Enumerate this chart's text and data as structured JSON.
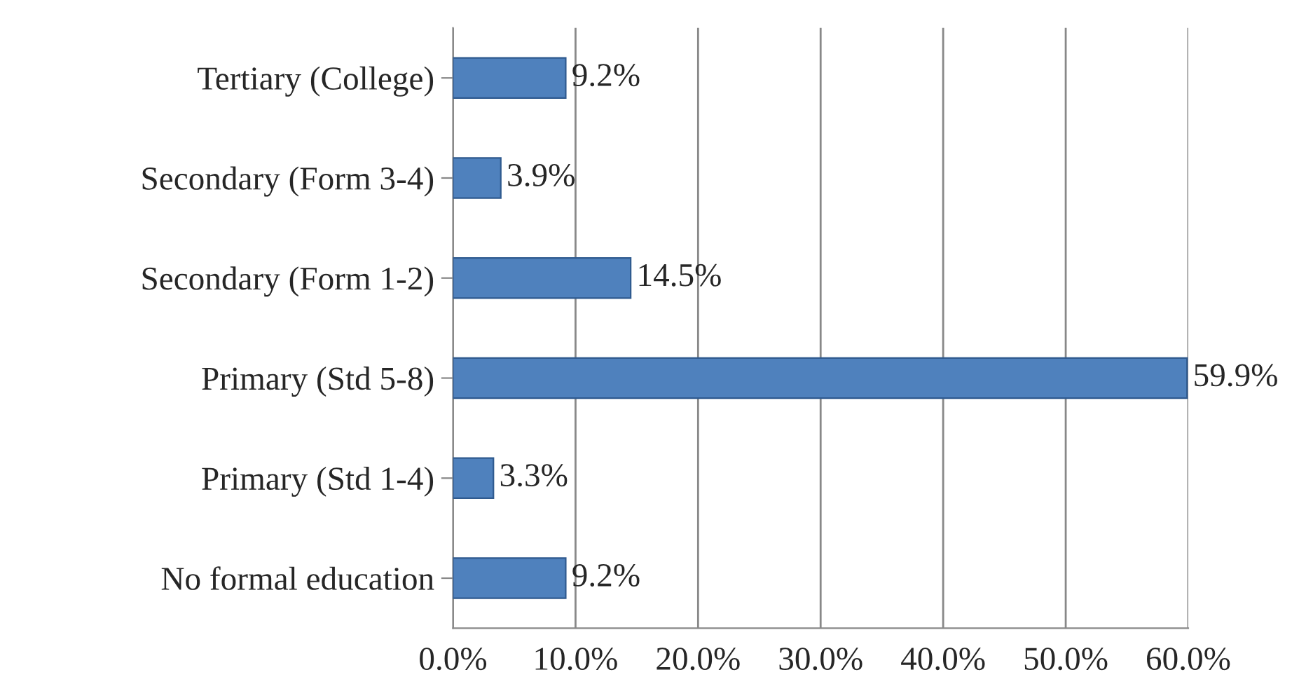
{
  "chart_data": {
    "type": "bar",
    "orientation": "horizontal",
    "categories": [
      "Tertiary (College)",
      "Secondary (Form 3-4)",
      "Secondary (Form 1-2)",
      "Primary (Std 5-8)",
      "Primary (Std 1-4)",
      "No formal education"
    ],
    "values": [
      9.2,
      3.9,
      14.5,
      59.9,
      3.3,
      9.2
    ],
    "value_labels": [
      "9.2%",
      "3.9%",
      "14.5%",
      "59.9%",
      "3.3%",
      "9.2%"
    ],
    "color": "#4f81bd",
    "xlim": [
      0,
      60
    ],
    "xticks": [
      {
        "value": 0,
        "label": "0.0%"
      },
      {
        "value": 10,
        "label": "10.0%"
      },
      {
        "value": 20,
        "label": "20.0%"
      },
      {
        "value": 30,
        "label": "30.0%"
      },
      {
        "value": 40,
        "label": "40.0%"
      },
      {
        "value": 50,
        "label": "50.0%"
      },
      {
        "value": 60,
        "label": "60.0%"
      }
    ],
    "grid": "x",
    "legend": false
  }
}
